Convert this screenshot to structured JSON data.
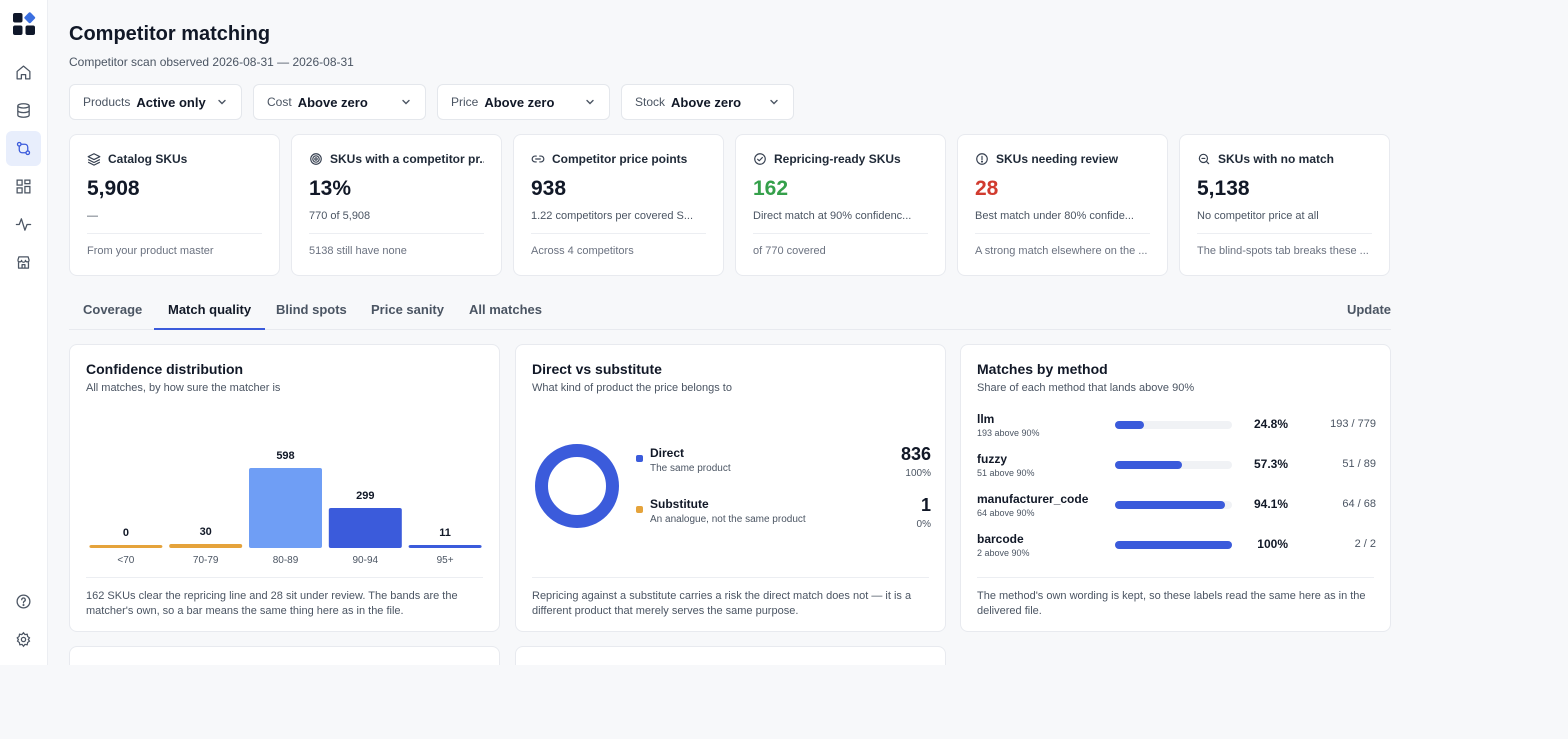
{
  "nav": {
    "items": [
      {
        "name": "home-icon"
      },
      {
        "name": "database-icon"
      },
      {
        "name": "matching-icon",
        "active": true
      },
      {
        "name": "dashboard-icon"
      },
      {
        "name": "activity-icon"
      },
      {
        "name": "store-icon"
      }
    ],
    "bottom": [
      {
        "name": "help-icon"
      },
      {
        "name": "settings-icon"
      }
    ]
  },
  "header": {
    "title": "Competitor matching",
    "subtitle": "Competitor scan observed 2026-08-31 — 2026-08-31"
  },
  "filters": [
    {
      "label": "Products",
      "value": "Active only"
    },
    {
      "label": "Cost",
      "value": "Above zero"
    },
    {
      "label": "Price",
      "value": "Above zero"
    },
    {
      "label": "Stock",
      "value": "Above zero"
    }
  ],
  "kpis": [
    {
      "icon": "layers-icon",
      "label": "Catalog SKUs",
      "value": "5,908",
      "note": "—",
      "foot": "From your product master",
      "tone": "default"
    },
    {
      "icon": "target-icon",
      "label": "SKUs with a competitor pr...",
      "value": "13%",
      "note": "770 of 5,908",
      "foot": "5138 still have none",
      "tone": "default"
    },
    {
      "icon": "link-icon",
      "label": "Competitor price points",
      "value": "938",
      "note": "1.22 competitors per covered S...",
      "foot": "Across 4 competitors",
      "tone": "default"
    },
    {
      "icon": "check-circle-icon",
      "label": "Repricing-ready SKUs",
      "value": "162",
      "note": "Direct match at 90% confidenc...",
      "foot": "of 770 covered",
      "tone": "green"
    },
    {
      "icon": "alert-circle-icon",
      "label": "SKUs needing review",
      "value": "28",
      "note": "Best match under 80% confide...",
      "foot": "A strong match elsewhere on the ...",
      "tone": "red"
    },
    {
      "icon": "search-icon",
      "label": "SKUs with no match",
      "value": "5,138",
      "note": "No competitor price at all",
      "foot": "The blind-spots tab breaks these ...",
      "tone": "default"
    }
  ],
  "tabs": [
    {
      "label": "Coverage"
    },
    {
      "label": "Match quality",
      "active": true
    },
    {
      "label": "Blind spots"
    },
    {
      "label": "Price sanity"
    },
    {
      "label": "All matches"
    }
  ],
  "update_label": "Update",
  "cards": {
    "confidence": {
      "title": "Confidence distribution",
      "subtitle": "All matches, by how sure the matcher is",
      "footer": "162 SKUs clear the repricing line and 28 sit under review. The bands are the matcher's own, so a bar means the same thing here as in the file."
    },
    "direct": {
      "title": "Direct vs substitute",
      "subtitle": "What kind of product the price belongs to",
      "legend": [
        {
          "name": "Direct",
          "desc": "The same product",
          "value": "836",
          "pct": "100%",
          "color": "#3b5bdb"
        },
        {
          "name": "Substitute",
          "desc": "An analogue, not the same product",
          "value": "1",
          "pct": "0%",
          "color": "#e5a33b"
        }
      ],
      "footer": "Repricing against a substitute carries a risk the direct match does not — it is a different product that merely serves the same purpose."
    },
    "methods": {
      "title": "Matches by method",
      "subtitle": "Share of each method that lands above 90%",
      "rows": [
        {
          "name": "llm",
          "sub": "193 above 90%",
          "pct": "24.8%",
          "count": "193 / 779",
          "share": 0.248
        },
        {
          "name": "fuzzy",
          "sub": "51 above 90%",
          "pct": "57.3%",
          "count": "51 / 89",
          "share": 0.573
        },
        {
          "name": "manufacturer_code",
          "sub": "64 above 90%",
          "pct": "94.1%",
          "count": "64 / 68",
          "share": 0.941
        },
        {
          "name": "barcode",
          "sub": "2 above 90%",
          "pct": "100%",
          "count": "2 / 2",
          "share": 1.0
        }
      ],
      "footer": "The method's own wording is kept, so these labels read the same here as in the delivered file."
    }
  },
  "chart_data": [
    {
      "type": "bar",
      "title": "Confidence distribution",
      "categories": [
        "<70",
        "70-79",
        "80-89",
        "90-94",
        "95+"
      ],
      "values": [
        0,
        30,
        598,
        299,
        11
      ],
      "colors": [
        "#e5a33b",
        "#e5a33b",
        "#6f9ef5",
        "#3b5bdb",
        "#3b5bdb"
      ],
      "ylim": [
        0,
        598
      ],
      "grid": false
    },
    {
      "type": "pie",
      "title": "Direct vs substitute",
      "categories": [
        "Direct",
        "Substitute"
      ],
      "values": [
        836,
        1
      ],
      "colors": [
        "#3b5bdb",
        "#e5a33b"
      ]
    }
  ]
}
